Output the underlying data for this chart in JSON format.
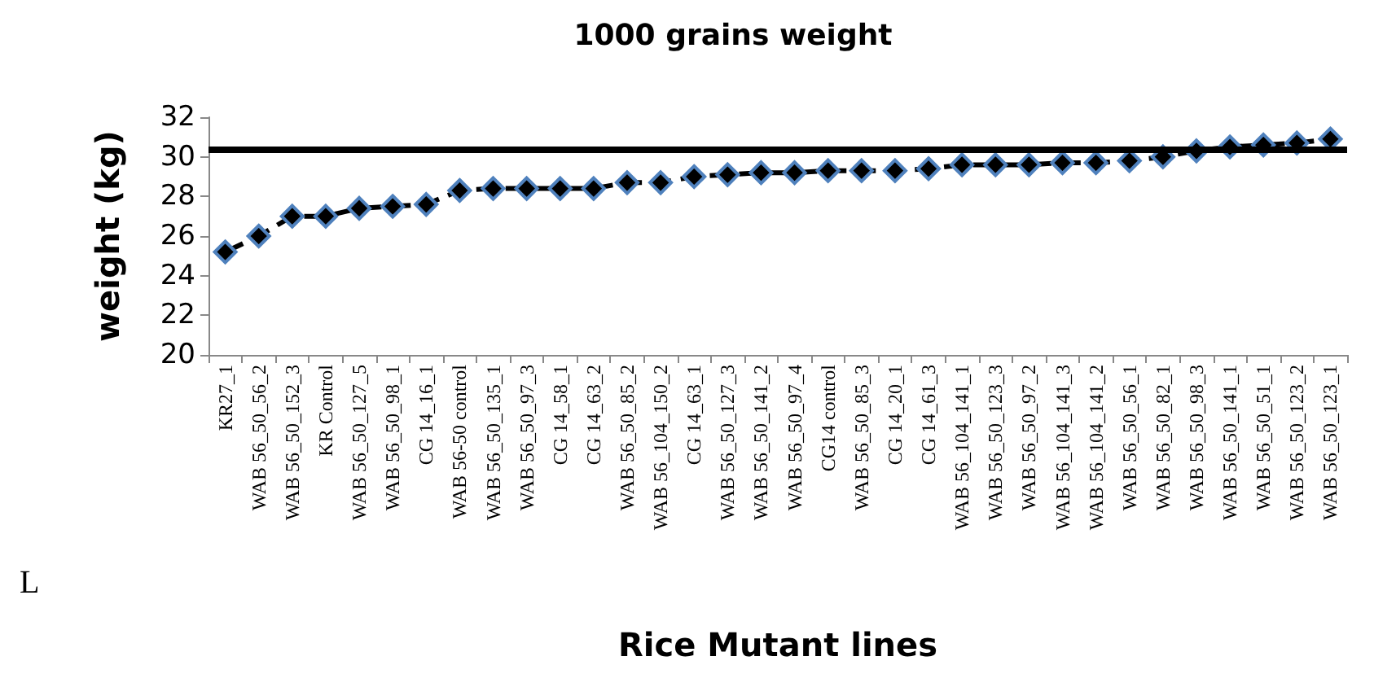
{
  "chart_data": {
    "type": "line",
    "title": "1000 grains weight",
    "xlabel": "Rice Mutant lines",
    "ylabel": "weight (kg)",
    "categories": [
      "KR27_1",
      "WAB 56_50_56_2",
      "WAB 56_50_152_3",
      "KR Control",
      "WAB 56_50_127_5",
      "WAB 56_50_98_1",
      "CG 14_16_1",
      "WAB 56-50 control",
      "WAB 56_50_135_1",
      "WAB 56_50_97_3",
      "CG 14_58_1",
      "CG 14_63_2",
      "WAB 56_50_85_2",
      "WAB 56_104_150_2",
      "CG 14_63_1",
      "WAB 56_50_127_3",
      "WAB 56_50_141_2",
      "WAB 56_50_97_4",
      "CG14 control",
      "WAB 56_50_85_3",
      "CG 14_20_1",
      "CG 14_61_3",
      "WAB 56_104_141_1",
      "WAB 56_50_123_3",
      "WAB 56_50_97_2",
      "WAB 56_104_141_3",
      "WAB 56_104_141_2",
      "WAB 56_50_56_1",
      "WAB 56_50_82_1",
      "WAB 56_50_98_3",
      "WAB 56_50_141_1",
      "WAB 56_50_51_1",
      "WAB 56_50_123_2",
      "WAB 56_50_123_1"
    ],
    "series": [
      {
        "color": "#000000",
        "values": [
          25.2,
          26.0,
          27.0,
          27.0,
          27.4,
          27.5,
          27.6,
          28.3,
          28.4,
          28.4,
          28.4,
          28.4,
          28.7,
          28.7,
          29.0,
          29.1,
          29.2,
          29.2,
          29.3,
          29.3,
          29.3,
          29.4,
          29.6,
          29.6,
          29.6,
          29.7,
          29.7,
          29.8,
          30.0,
          30.3,
          30.5,
          30.6,
          30.7,
          30.9
        ]
      }
    ],
    "ylim": [
      20,
      32
    ],
    "yticks": [
      20,
      22,
      24,
      26,
      28,
      30,
      32
    ],
    "grid": false,
    "marker": "diamond",
    "line_style": "dashed",
    "ref_lines": [
      {
        "axis": "y",
        "value": 30.4,
        "color": "#000000",
        "line_style": "solid"
      }
    ],
    "annotations": [
      "L"
    ]
  }
}
